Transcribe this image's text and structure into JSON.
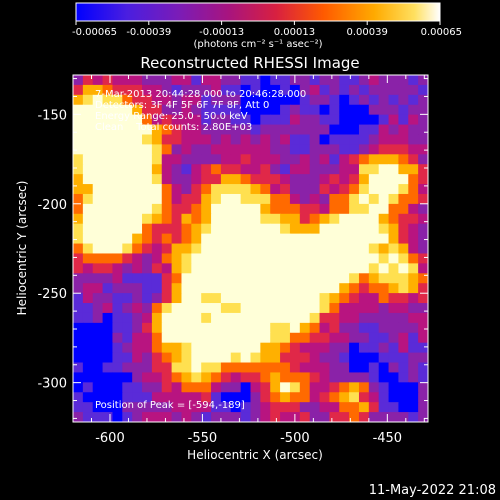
{
  "colorbar": {
    "ticks": [
      "-0.00065",
      "-0.00039",
      "-0.00013",
      "0.00013",
      "0.00039",
      "0.00065"
    ],
    "units_label": "(photons cm⁻² s⁻¹ asec⁻²)",
    "range": [
      -0.00065,
      0.00065
    ],
    "colors": [
      "#0000ff",
      "#5a2bd8",
      "#8a22a8",
      "#b81480",
      "#e02848",
      "#ff6a00",
      "#ffb000",
      "#ffe050",
      "#ffffd8"
    ]
  },
  "image": {
    "title": "Reconstructed RHESSI Image",
    "overlay": {
      "time": "7-Mar-2013 20:44:28.000 to 20:46:28.000",
      "detectors": "Detectors: 3F 4F 5F 6F 7F 8F, Att 0",
      "energy": "Energy Range: 25.0 - 50.0 keV",
      "clean": "Clean    Total counts: 2.80E+03"
    },
    "peak": "Position of Peak = [-594,-189]",
    "x_label": "Heliocentric X (arcsec)",
    "y_label": "Heliocentric Y (arcsec)",
    "x_ticks": [
      "-600",
      "-550",
      "-500",
      "-450"
    ],
    "y_ticks": [
      "-150",
      "-200",
      "-250",
      "-300"
    ],
    "x_range": [
      -620,
      -428
    ],
    "y_range": [
      -322,
      -128
    ]
  },
  "footer": {
    "timestamp": "11-May-2022 21:08"
  }
}
